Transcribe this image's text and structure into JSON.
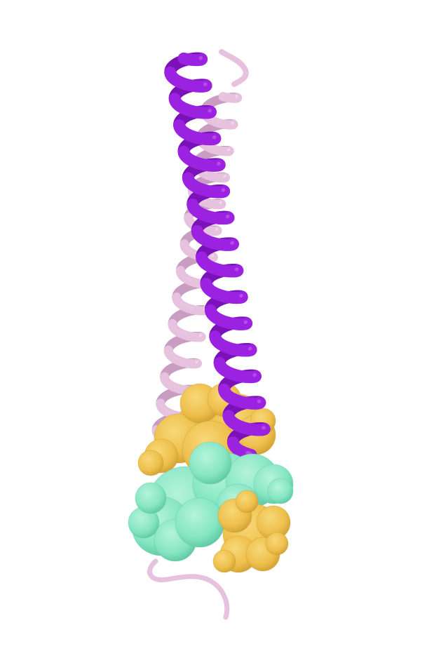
{
  "scene": {
    "background": "#ffffff",
    "subject": "protein-structure-render",
    "colors": {
      "helix_primary": "#9b22e0",
      "helix_primary_dark": "#7a12b8",
      "helix_primary_light": "#c45cf0",
      "helix_secondary": "#e6c2de",
      "helix_secondary_dark": "#c99cc1",
      "helix_secondary_light": "#f4dff0",
      "surface_gold": "#eebf4c",
      "surface_gold_dark": "#c99a2c",
      "surface_teal": "#86e6c3",
      "surface_teal_dark": "#5cc5a1"
    }
  }
}
